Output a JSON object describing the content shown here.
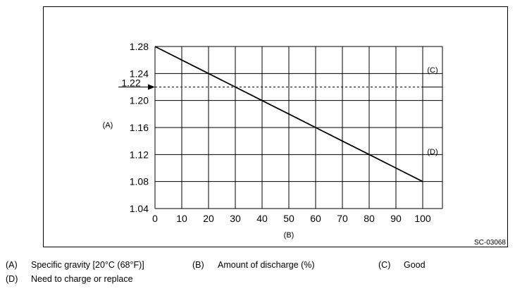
{
  "chart_data": {
    "type": "line",
    "x": [
      0,
      10,
      20,
      30,
      40,
      50,
      60,
      70,
      80,
      90,
      100
    ],
    "series": [
      {
        "values": [
          1.28,
          1.26,
          1.24,
          1.22,
          1.2,
          1.18,
          1.16,
          1.14,
          1.12,
          1.1,
          1.08
        ]
      }
    ],
    "xlim": [
      0,
      100
    ],
    "ylim": [
      1.04,
      1.28
    ],
    "xticks": [
      "0",
      "10",
      "20",
      "30",
      "40",
      "50",
      "60",
      "70",
      "80",
      "90",
      "100"
    ],
    "yticks": [
      "1.28",
      "1.24",
      "1.20",
      "1.16",
      "1.12",
      "1.08",
      "1.04"
    ],
    "grid": true,
    "xlabel": "(B)",
    "ylabel": "(A)",
    "reference_line": {
      "y": 1.22,
      "label": "1.22",
      "style": "dashed"
    },
    "region_labels": {
      "above": "(C)",
      "below": "(D)"
    },
    "figure_code": "SC-03068"
  },
  "legend": [
    {
      "key": "(A)",
      "text": "Specific gravity [20°C (68°F)]"
    },
    {
      "key": "(B)",
      "text": "Amount of discharge (%)"
    },
    {
      "key": "(C)",
      "text": "Good"
    },
    {
      "key": "(D)",
      "text": "Need to charge or replace"
    }
  ]
}
